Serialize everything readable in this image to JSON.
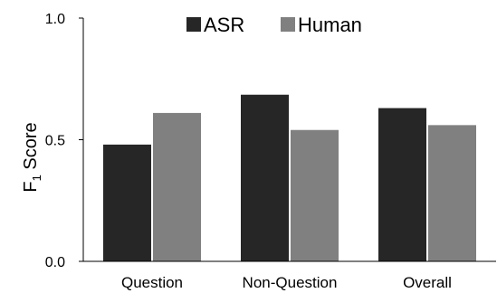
{
  "chart_data": {
    "type": "bar",
    "categories": [
      "Question",
      "Non-Question",
      "Overall"
    ],
    "series": [
      {
        "name": "ASR",
        "values": [
          0.48,
          0.685,
          0.63
        ],
        "color": "#262626"
      },
      {
        "name": "Human",
        "values": [
          0.61,
          0.54,
          0.56
        ],
        "color": "#808080"
      }
    ],
    "ylabel": {
      "main": "F",
      "sub": "1",
      "rest": " Score"
    },
    "ylim": [
      0,
      1
    ],
    "yticks": [
      "0.0",
      "0.5",
      "1.0"
    ],
    "ytick_values": [
      0,
      0.5,
      1
    ],
    "legend_position": "top-center",
    "grid": false
  }
}
